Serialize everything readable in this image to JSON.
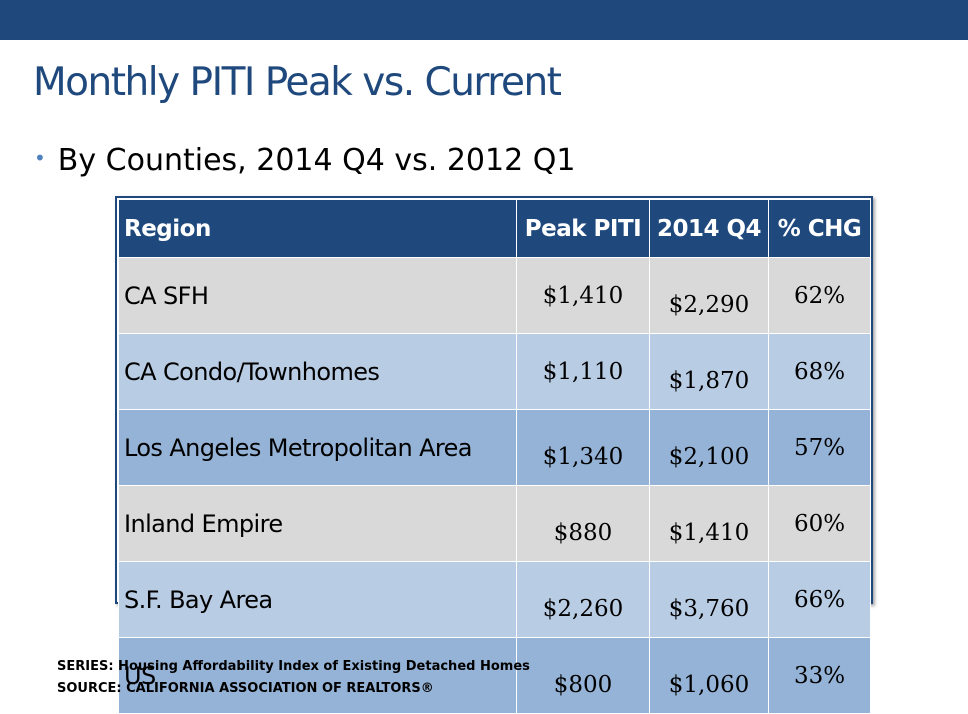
{
  "slide": {
    "title": "Monthly PITI Peak vs. Current",
    "bullet": "By Counties, 2014 Q4 vs. 2012 Q1",
    "bullet_symbol": "•"
  },
  "table": {
    "headers": [
      "Region",
      "Peak PITI",
      "2014 Q4",
      "% CHG"
    ],
    "rows": [
      {
        "region": "CA SFH",
        "peak": "$1,410",
        "current": "$2,290",
        "chg": "62%"
      },
      {
        "region": "CA Condo/Townhomes",
        "peak": "$1,110",
        "current": "$1,870",
        "chg": "68%"
      },
      {
        "region": "Los Angeles Metropolitan Area",
        "peak": "$1,340",
        "current": "$2,100",
        "chg": "57%"
      },
      {
        "region": "Inland Empire",
        "peak": "$880",
        "current": "$1,410",
        "chg": "60%"
      },
      {
        "region": "S.F. Bay Area",
        "peak": "$2,260",
        "current": "$3,760",
        "chg": "66%"
      },
      {
        "region": "US",
        "peak": "$800",
        "current": "$1,060",
        "chg": "33%"
      }
    ]
  },
  "footer": {
    "series": "SERIES: Housing Affordability Index of Existing Detached Homes",
    "source": "SOURCE:  CALIFORNIA ASSOCIATION OF REALTORS®"
  },
  "colors": {
    "header_band": "#1f497d",
    "title": "#1f497d",
    "row_gray": "#d9d9d9",
    "row_light_blue": "#b8cce4",
    "row_mid_blue": "#95b3d7"
  }
}
